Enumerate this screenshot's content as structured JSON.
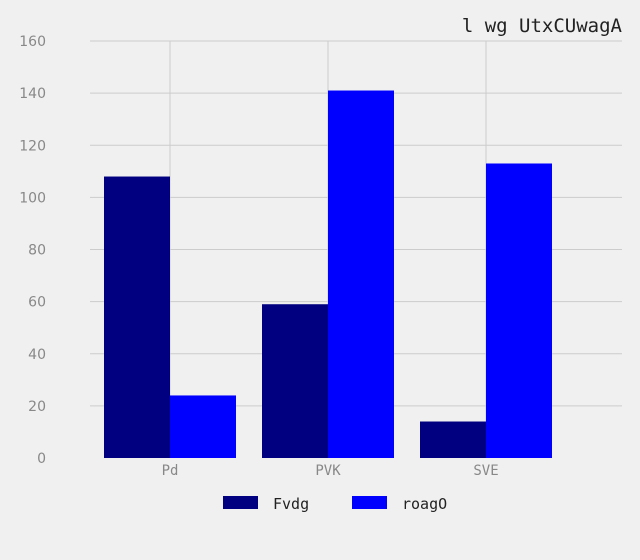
{
  "chart_data": {
    "type": "bar",
    "title": "l wg UtxCUwagA",
    "xlabel": "",
    "ylabel": "",
    "categories": [
      "Pd",
      "PVK",
      "SVE"
    ],
    "series": [
      {
        "name": "Fvdg",
        "values": [
          108,
          59,
          14
        ],
        "color": "#000080"
      },
      {
        "name": "roagO",
        "values": [
          24,
          141,
          113
        ],
        "color": "#0000ff"
      }
    ],
    "ylim": [
      0,
      160
    ],
    "yticks": [
      0,
      20,
      40,
      60,
      80,
      100,
      120,
      140,
      160
    ],
    "grid": true,
    "legend_position": "bottom-center",
    "background_color": "#f0f0f0",
    "grid_color": "#cccccc"
  }
}
